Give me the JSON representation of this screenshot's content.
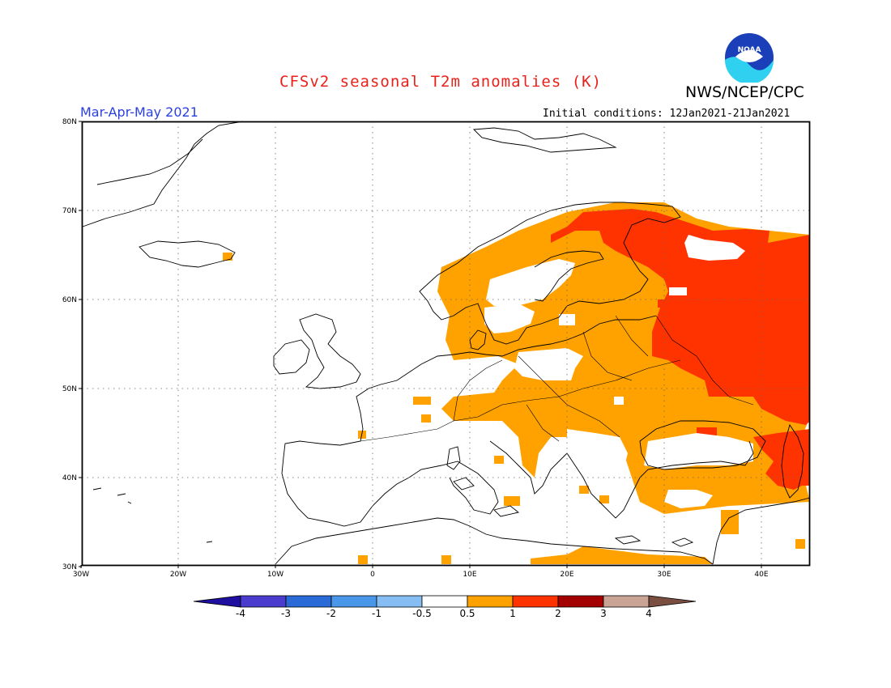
{
  "header": {
    "title": "CFSv2 seasonal T2m anomalies (K)",
    "agency": "NWS/NCEP/CPC",
    "season": "Mar-Apr-May 2021",
    "initial_conditions": "Initial conditions: 12Jan2021-21Jan2021",
    "logo_text": "NOAA"
  },
  "map": {
    "lat_labels": [
      "80N",
      "70N",
      "60N",
      "50N",
      "40N",
      "30N"
    ],
    "lon_labels": [
      "30W",
      "20W",
      "10W",
      "0",
      "10E",
      "20E",
      "30E",
      "40E"
    ]
  },
  "colorbar": {
    "labels": [
      "-4",
      "-3",
      "-2",
      "-1",
      "-0.5",
      "0.5",
      "1",
      "2",
      "3",
      "4"
    ],
    "colors": [
      "#1e0fa0",
      "#4a3ccc",
      "#2a6ad6",
      "#4a97ea",
      "#86bdf2",
      "#ffffff",
      "#ffa200",
      "#ff3300",
      "#a30000",
      "#c9a394",
      "#7a4e40"
    ]
  },
  "colors": {
    "ocean": "#ffffff",
    "anom_0_5_to_1": "#ffa200",
    "anom_1_to_2": "#ff3300"
  }
}
